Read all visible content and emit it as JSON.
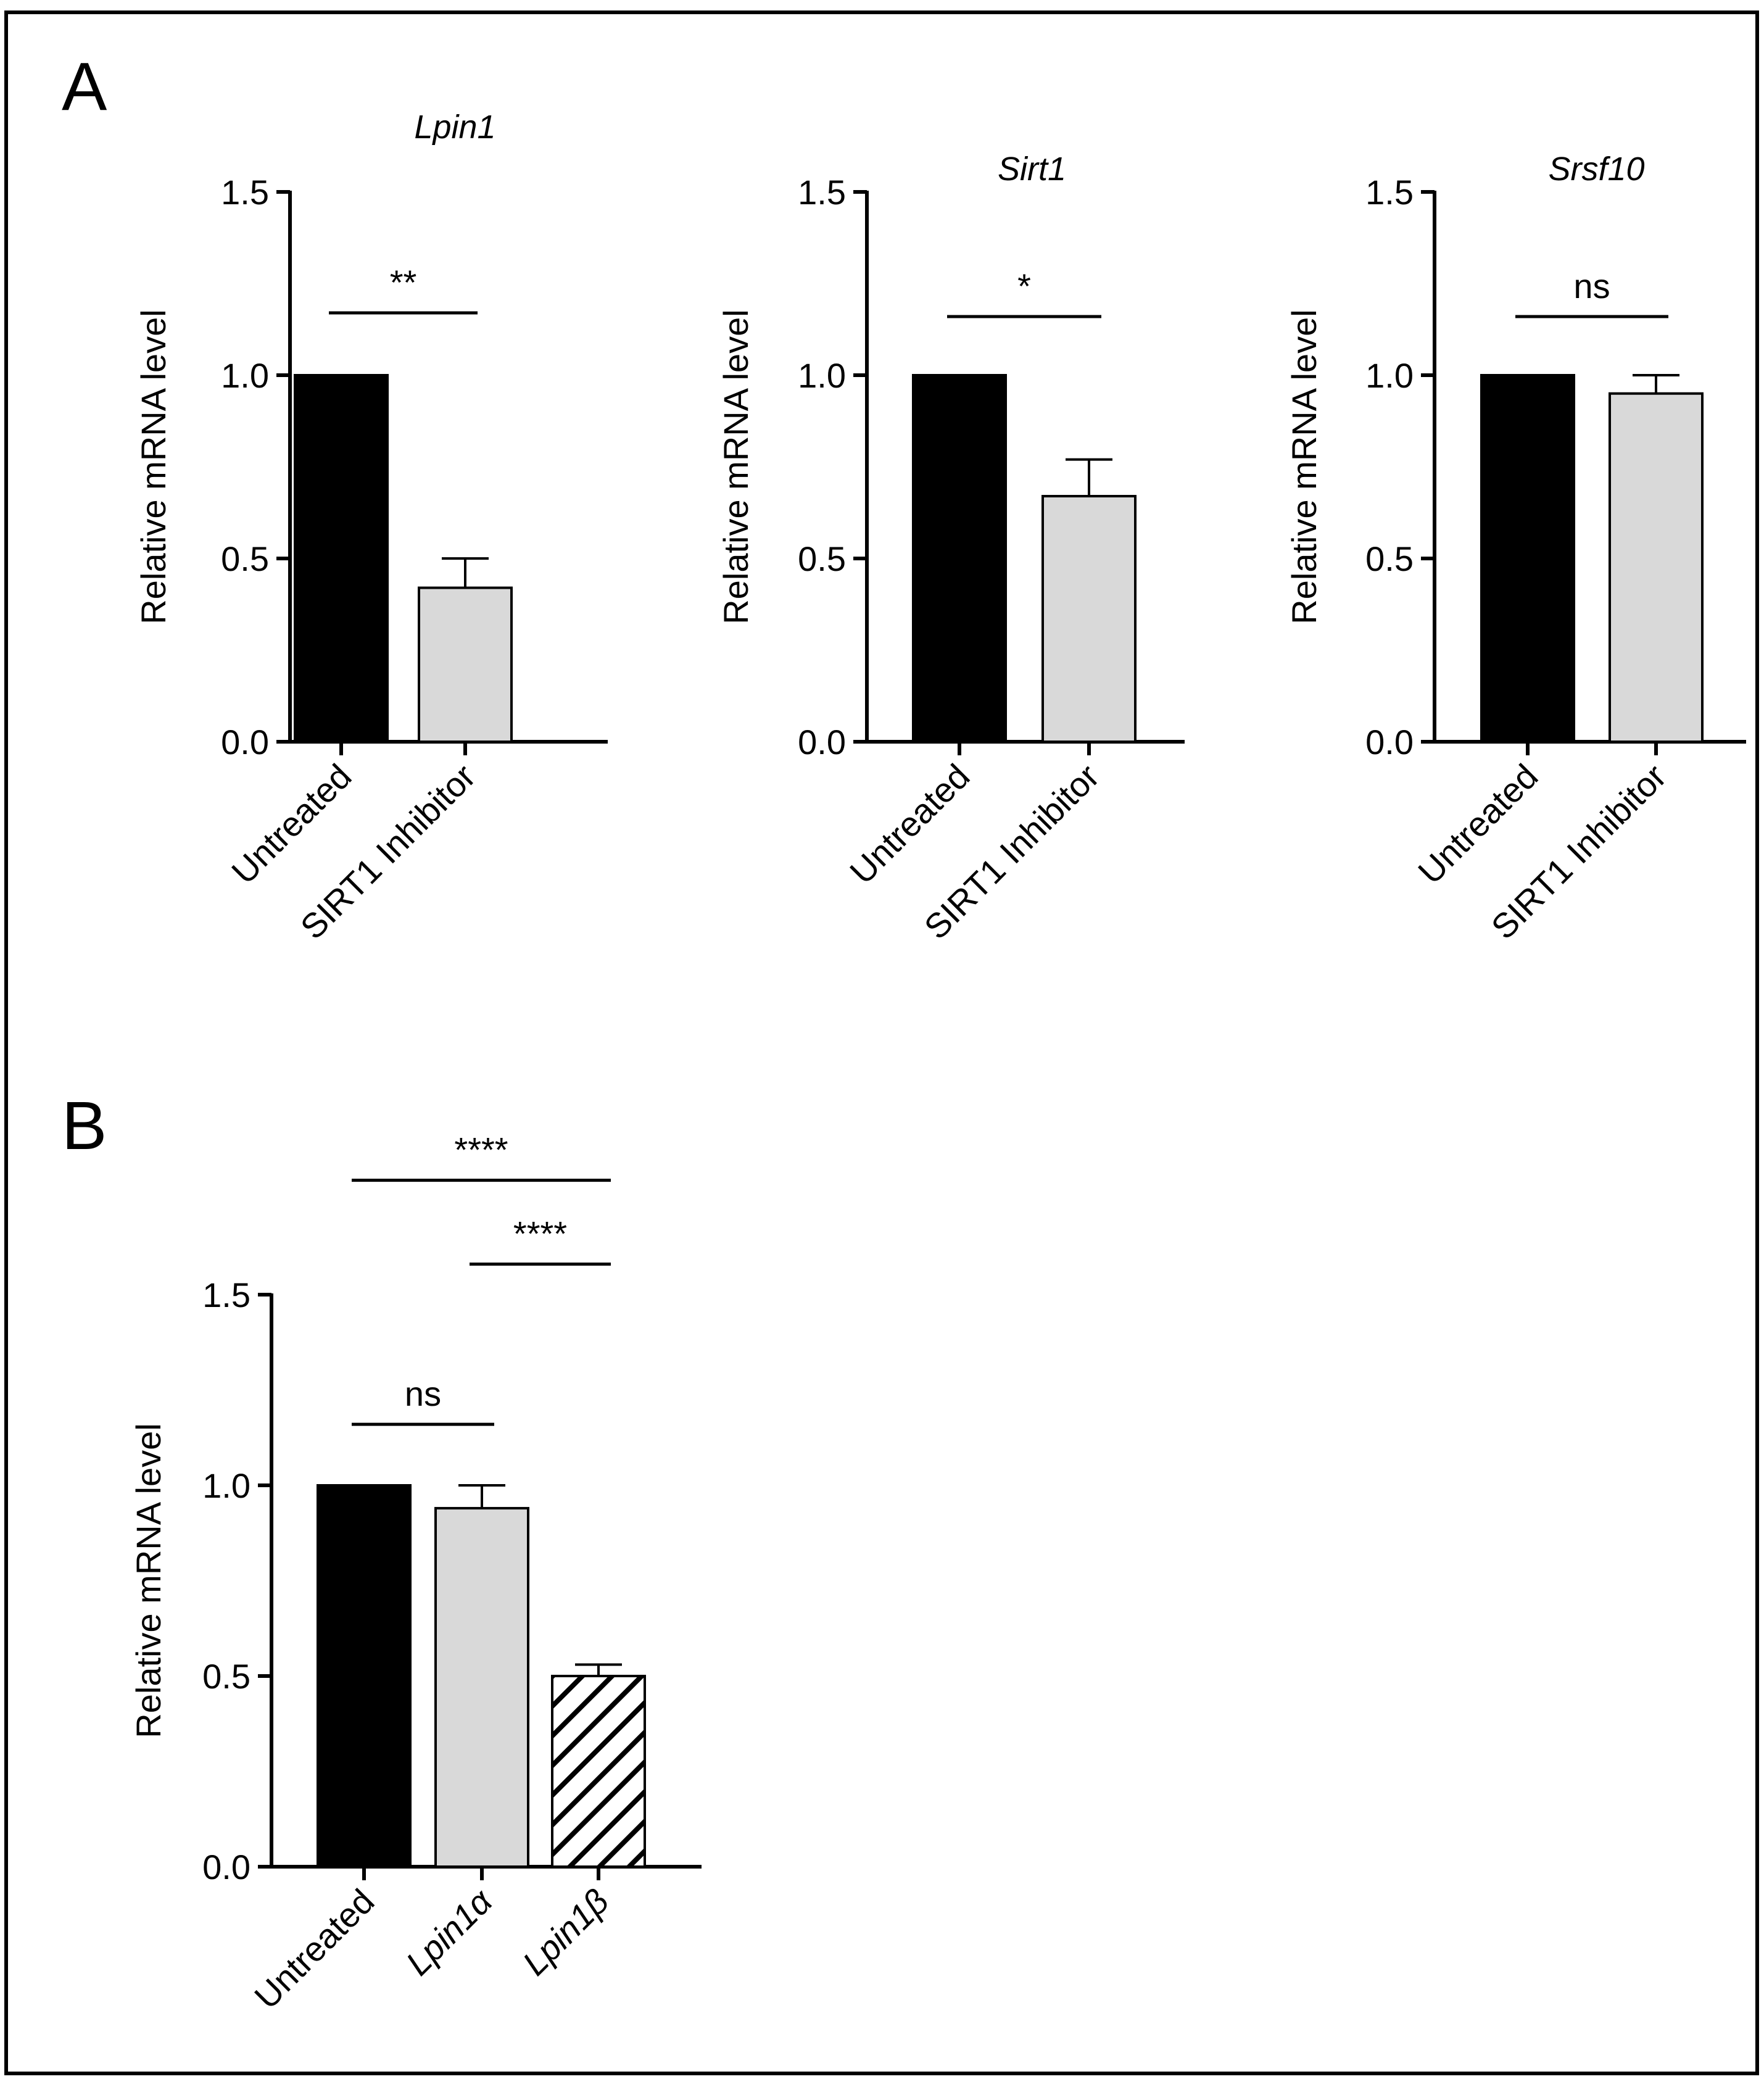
{
  "panels": [
    {
      "letter": "A"
    },
    {
      "letter": "B"
    }
  ],
  "chart_data": [
    {
      "type": "bar",
      "panel": "A",
      "title": "Lpin1",
      "xlabel": "",
      "ylabel": "Relative mRNA level",
      "ylim": [
        0,
        1.5
      ],
      "yticks": [
        0.0,
        0.5,
        1.0,
        1.5
      ],
      "ytick_labels": [
        "0.0",
        "0.5",
        "1.0",
        "1.5"
      ],
      "categories": [
        "Untreated",
        "SIRT1 Inhibitor"
      ],
      "italic_categories": [
        false,
        false
      ],
      "values": [
        1.0,
        0.42
      ],
      "errors": [
        0,
        0.08
      ],
      "fills": [
        "#000000",
        "#d9d9d9"
      ],
      "patterns": [
        "solid",
        "solid"
      ],
      "significance": [
        {
          "from": 0,
          "to": 1,
          "label": "**",
          "y": 1.17
        }
      ]
    },
    {
      "type": "bar",
      "panel": "A",
      "title": "Sirt1",
      "xlabel": "",
      "ylabel": "Relative mRNA level",
      "ylim": [
        0,
        1.5
      ],
      "yticks": [
        0.0,
        0.5,
        1.0,
        1.5
      ],
      "ytick_labels": [
        "0.0",
        "0.5",
        "1.0",
        "1.5"
      ],
      "categories": [
        "Untreated",
        "SIRT1 Inhibitor"
      ],
      "italic_categories": [
        false,
        false
      ],
      "values": [
        1.0,
        0.67
      ],
      "errors": [
        0,
        0.1
      ],
      "fills": [
        "#000000",
        "#d9d9d9"
      ],
      "patterns": [
        "solid",
        "solid"
      ],
      "significance": [
        {
          "from": 0,
          "to": 1,
          "label": "*",
          "y": 1.16
        }
      ]
    },
    {
      "type": "bar",
      "panel": "A",
      "title": "Srsf10",
      "xlabel": "",
      "ylabel": "Relative mRNA level",
      "ylim": [
        0,
        1.5
      ],
      "yticks": [
        0.0,
        0.5,
        1.0,
        1.5
      ],
      "ytick_labels": [
        "0.0",
        "0.5",
        "1.0",
        "1.5"
      ],
      "categories": [
        "Untreated",
        "SIRT1 Inhibitor"
      ],
      "italic_categories": [
        false,
        false
      ],
      "values": [
        1.0,
        0.95
      ],
      "errors": [
        0,
        0.05
      ],
      "fills": [
        "#000000",
        "#d9d9d9"
      ],
      "patterns": [
        "solid",
        "solid"
      ],
      "significance": [
        {
          "from": 0,
          "to": 1,
          "label": "ns",
          "y": 1.16
        }
      ]
    },
    {
      "type": "bar",
      "panel": "B",
      "title": "",
      "xlabel": "",
      "ylabel": "Relative mRNA level",
      "ylim": [
        0,
        1.5
      ],
      "yticks": [
        0.0,
        0.5,
        1.0,
        1.5
      ],
      "ytick_labels": [
        "0.0",
        "0.5",
        "1.0",
        "1.5"
      ],
      "categories": [
        "Untreated",
        "Lpin1α",
        "Lpin1β"
      ],
      "italic_categories": [
        false,
        true,
        true
      ],
      "values": [
        1.0,
        0.94,
        0.5
      ],
      "errors": [
        0,
        0.06,
        0.03
      ],
      "fills": [
        "#000000",
        "#d9d9d9",
        "#ffffff"
      ],
      "patterns": [
        "solid",
        "solid",
        "hatch"
      ],
      "significance": [
        {
          "from": 0,
          "to": 1,
          "label": "ns",
          "y": 1.16
        },
        {
          "from": 1,
          "to": 2,
          "label": "****",
          "y": 1.58
        },
        {
          "from": 0,
          "to": 2,
          "label": "****",
          "y": 1.8
        }
      ]
    }
  ]
}
